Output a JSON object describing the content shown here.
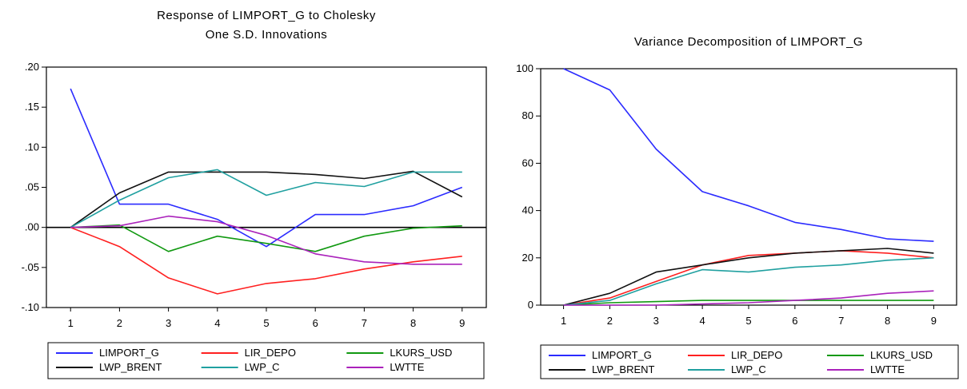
{
  "chart_data": [
    {
      "type": "line",
      "title": [
        "Response of LIMPORT_G to Cholesky",
        "One S.D. Innovations"
      ],
      "xlabel": "",
      "ylabel": "",
      "x": [
        1,
        2,
        3,
        4,
        5,
        6,
        7,
        8,
        9
      ],
      "x_tick_labels": [
        "1",
        "2",
        "3",
        "4",
        "5",
        "6",
        "7",
        "8",
        "9"
      ],
      "ylim": [
        -0.1,
        0.2
      ],
      "y_ticks": [
        0.2,
        0.15,
        0.1,
        0.05,
        0.0,
        -0.05,
        -0.1
      ],
      "y_tick_labels": [
        ".20",
        ".15",
        ".10",
        ".05",
        ".00",
        "-.05",
        "-.10"
      ],
      "zero_line": true,
      "grid": false,
      "legend_position": "bottom",
      "series": [
        {
          "name": "LIMPORT_G",
          "color": "#2b2bff",
          "values": [
            0.173,
            0.029,
            0.029,
            0.01,
            -0.024,
            0.016,
            0.016,
            0.027,
            0.05
          ]
        },
        {
          "name": "LIR_DEPO",
          "color": "#ff2020",
          "values": [
            0.0,
            -0.024,
            -0.063,
            -0.083,
            -0.07,
            -0.064,
            -0.052,
            -0.043,
            -0.036
          ]
        },
        {
          "name": "LKURS_USD",
          "color": "#119911",
          "values": [
            0.0,
            0.003,
            -0.03,
            -0.011,
            -0.02,
            -0.03,
            -0.011,
            -0.001,
            0.002
          ]
        },
        {
          "name": "LWP_BRENT",
          "color": "#111111",
          "values": [
            0.0,
            0.043,
            0.069,
            0.069,
            0.069,
            0.066,
            0.061,
            0.07,
            0.038
          ]
        },
        {
          "name": "LWP_C",
          "color": "#20a0a0",
          "values": [
            0.0,
            0.034,
            0.062,
            0.072,
            0.04,
            0.056,
            0.051,
            0.069,
            0.069
          ]
        },
        {
          "name": "LWTTE",
          "color": "#aa22bb",
          "values": [
            0.0,
            0.002,
            0.014,
            0.007,
            -0.01,
            -0.033,
            -0.043,
            -0.046,
            -0.046
          ]
        }
      ]
    },
    {
      "type": "line",
      "title": [
        "Variance Decomposition of LIMPORT_G"
      ],
      "xlabel": "",
      "ylabel": "",
      "x": [
        1,
        2,
        3,
        4,
        5,
        6,
        7,
        8,
        9
      ],
      "x_tick_labels": [
        "1",
        "2",
        "3",
        "4",
        "5",
        "6",
        "7",
        "8",
        "9"
      ],
      "ylim": [
        0,
        100
      ],
      "y_ticks": [
        100,
        80,
        60,
        40,
        20,
        0
      ],
      "y_tick_labels": [
        "100",
        "80",
        "60",
        "40",
        "20",
        "0"
      ],
      "zero_line": false,
      "grid": false,
      "legend_position": "bottom",
      "series": [
        {
          "name": "LIMPORT_G",
          "color": "#2b2bff",
          "values": [
            100,
            91,
            66,
            48,
            42,
            35,
            32,
            28,
            27
          ]
        },
        {
          "name": "LIR_DEPO",
          "color": "#ff2020",
          "values": [
            0,
            3,
            10,
            17,
            21,
            22,
            23,
            22,
            20
          ]
        },
        {
          "name": "LKURS_USD",
          "color": "#119911",
          "values": [
            0,
            1,
            1.5,
            2,
            2,
            2,
            2,
            2,
            2
          ]
        },
        {
          "name": "LWP_BRENT",
          "color": "#111111",
          "values": [
            0,
            5,
            14,
            17,
            20,
            22,
            23,
            24,
            22
          ]
        },
        {
          "name": "LWP_C",
          "color": "#20a0a0",
          "values": [
            0,
            2,
            9,
            15,
            14,
            16,
            17,
            19,
            20
          ]
        },
        {
          "name": "LWTTE",
          "color": "#aa22bb",
          "values": [
            0,
            0,
            0,
            0.5,
            1,
            2,
            3,
            5,
            6
          ]
        }
      ]
    }
  ]
}
